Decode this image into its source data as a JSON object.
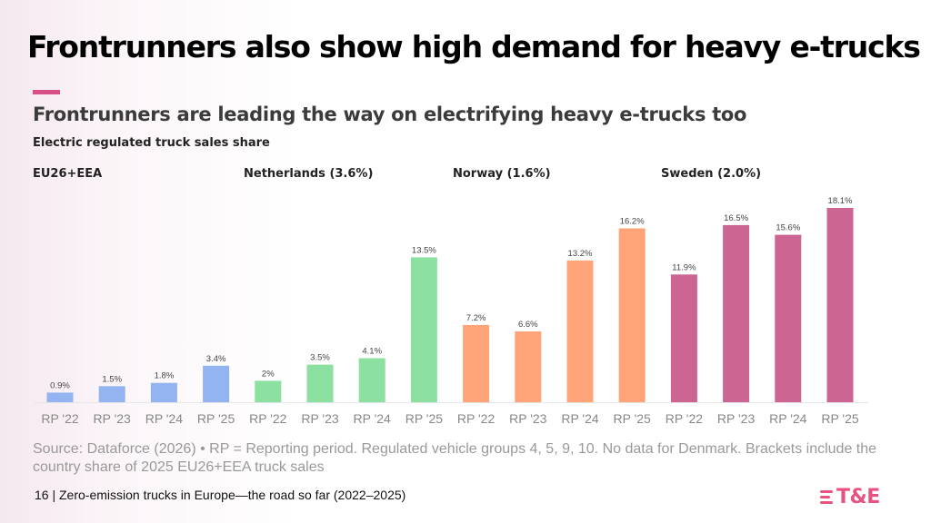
{
  "slide": {
    "title": "Frontrunners also show high demand for heavy e-trucks",
    "accent_color": "#D94F87",
    "page_number": "16",
    "footer_text": "| Zero-emission trucks in Europe—the road so far (2022–2025)",
    "logo": {
      "text": "T&E",
      "color": "#E8527F"
    },
    "source": "Source: Dataforce (2026) • RP = Reporting period. Regulated vehicle groups 4, 5, 9, 10. No data for Denmark. Brackets include the country share of 2025 EU26+EEA truck sales"
  },
  "chart_data": {
    "type": "bar",
    "title": "Frontrunners are leading the way on electrifying heavy e-trucks too",
    "ylabel": "Electric regulated truck sales share",
    "xlabel": "",
    "unit": "%",
    "ylim": [
      0,
      18.1
    ],
    "grid": false,
    "groups": [
      {
        "name": "EU26+EEA",
        "color": "#94B4F1",
        "categories": [
          "RP '22",
          "RP '23",
          "RP '24",
          "RP '25"
        ],
        "values": [
          0.9,
          1.5,
          1.8,
          3.4
        ],
        "labels": [
          "0.9%",
          "1.5%",
          "1.8%",
          "3.4%"
        ]
      },
      {
        "name": "Netherlands (3.6%)",
        "color": "#8CE0A0",
        "categories": [
          "RP '22",
          "RP '23",
          "RP '24",
          "RP '25"
        ],
        "values": [
          2,
          3.5,
          4.1,
          13.5
        ],
        "labels": [
          "2%",
          "3.5%",
          "4.1%",
          "13.5%"
        ]
      },
      {
        "name": "Norway (1.6%)",
        "color": "#FFA478",
        "categories": [
          "RP '22",
          "RP '23",
          "RP '24",
          "RP '25"
        ],
        "values": [
          7.2,
          6.6,
          13.2,
          16.2
        ],
        "labels": [
          "7.2%",
          "6.6%",
          "13.2%",
          "16.2%"
        ]
      },
      {
        "name": "Sweden (2.0%)",
        "color": "#CD6592",
        "categories": [
          "RP '22",
          "RP '23",
          "RP '24",
          "RP '25"
        ],
        "values": [
          11.9,
          16.5,
          15.6,
          18.1
        ],
        "labels": [
          "11.9%",
          "16.5%",
          "15.6%",
          "18.1%"
        ]
      }
    ]
  }
}
